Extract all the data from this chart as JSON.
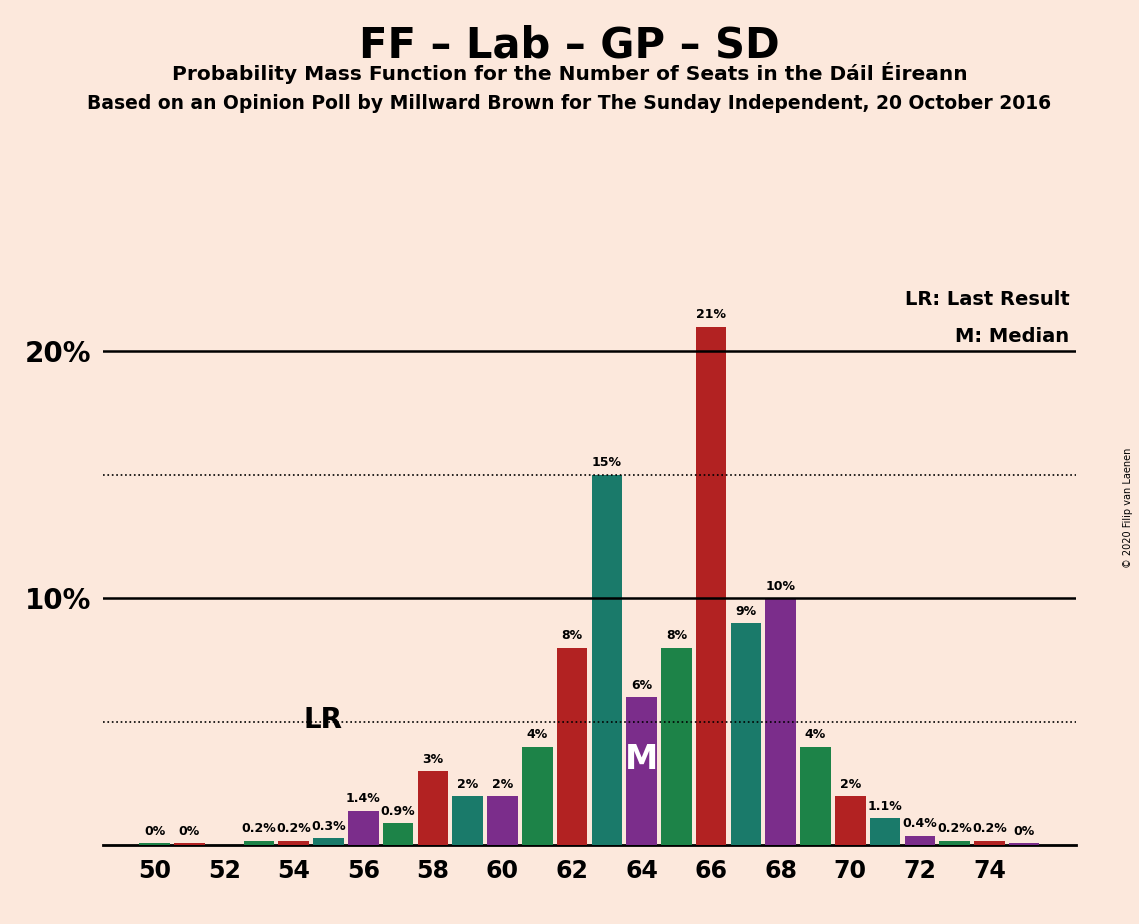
{
  "title": "FF – Lab – GP – SD",
  "subtitle": "Probability Mass Function for the Number of Seats in the Dáil Éireann",
  "subtitle2": "Based on an Opinion Poll by Millward Brown for The Sunday Independent, 20 October 2016",
  "copyright": "© 2020 Filip van Laenen",
  "bg": "#fce8dc",
  "bars": [
    {
      "seat": 50,
      "value": 0.08,
      "color": "#1D8348",
      "label": "0%"
    },
    {
      "seat": 51,
      "value": 0.08,
      "color": "#B22222",
      "label": "0%"
    },
    {
      "seat": 53,
      "value": 0.2,
      "color": "#1D8348",
      "label": "0.2%"
    },
    {
      "seat": 54,
      "value": 0.2,
      "color": "#B22222",
      "label": "0.2%"
    },
    {
      "seat": 55,
      "value": 0.3,
      "color": "#1A7A6A",
      "label": "0.3%"
    },
    {
      "seat": 56,
      "value": 1.4,
      "color": "#7B2D8B",
      "label": "1.4%"
    },
    {
      "seat": 57,
      "value": 0.9,
      "color": "#1D8348",
      "label": "0.9%"
    },
    {
      "seat": 58,
      "value": 3.0,
      "color": "#B22222",
      "label": "3%"
    },
    {
      "seat": 59,
      "value": 2.0,
      "color": "#1A7A6A",
      "label": "2%"
    },
    {
      "seat": 60,
      "value": 2.0,
      "color": "#7B2D8B",
      "label": "2%"
    },
    {
      "seat": 61,
      "value": 4.0,
      "color": "#1D8348",
      "label": "4%"
    },
    {
      "seat": 62,
      "value": 8.0,
      "color": "#B22222",
      "label": "8%"
    },
    {
      "seat": 63,
      "value": 15.0,
      "color": "#1A7A6A",
      "label": "15%"
    },
    {
      "seat": 64,
      "value": 6.0,
      "color": "#7B2D8B",
      "label": "6%"
    },
    {
      "seat": 65,
      "value": 8.0,
      "color": "#1D8348",
      "label": "8%"
    },
    {
      "seat": 66,
      "value": 21.0,
      "color": "#B22222",
      "label": "21%"
    },
    {
      "seat": 67,
      "value": 9.0,
      "color": "#1A7A6A",
      "label": "9%"
    },
    {
      "seat": 68,
      "value": 10.0,
      "color": "#7B2D8B",
      "label": "10%"
    },
    {
      "seat": 69,
      "value": 4.0,
      "color": "#1D8348",
      "label": "4%"
    },
    {
      "seat": 70,
      "value": 2.0,
      "color": "#B22222",
      "label": "2%"
    },
    {
      "seat": 71,
      "value": 1.1,
      "color": "#1A7A6A",
      "label": "1.1%"
    },
    {
      "seat": 72,
      "value": 0.4,
      "color": "#7B2D8B",
      "label": "0.4%"
    },
    {
      "seat": 73,
      "value": 0.2,
      "color": "#1D8348",
      "label": "0.2%"
    },
    {
      "seat": 74,
      "value": 0.2,
      "color": "#B22222",
      "label": "0.2%"
    },
    {
      "seat": 75,
      "value": 0.08,
      "color": "#7B2D8B",
      "label": "0%"
    }
  ],
  "lr_seat": 56,
  "median_seat": 64,
  "ylim": [
    0,
    23
  ],
  "solid_ylines": [
    10,
    20
  ],
  "dotted_ylines": [
    5,
    15
  ],
  "xticks": [
    50,
    52,
    54,
    56,
    58,
    60,
    62,
    64,
    66,
    68,
    70,
    72,
    74
  ],
  "legend_lr": "LR: Last Result",
  "legend_m": "M: Median",
  "bar_width": 0.88
}
